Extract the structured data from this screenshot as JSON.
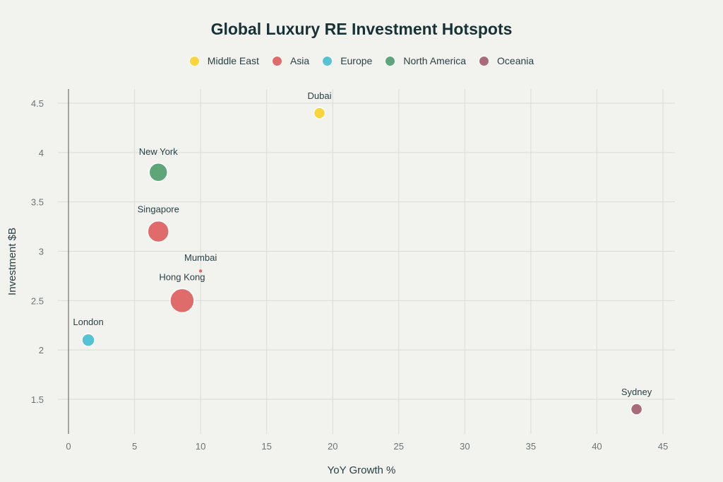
{
  "chart_data": {
    "type": "scatter",
    "subtype": "bubble",
    "title": "Global Luxury RE Investment Hotspots",
    "xlabel": "YoY Growth %",
    "ylabel": "Investment $B",
    "xlim": [
      -0.5,
      46
    ],
    "ylim": [
      1.15,
      4.65
    ],
    "xticks": [
      0,
      5,
      10,
      15,
      20,
      25,
      30,
      35,
      40,
      45
    ],
    "yticks": [
      1.5,
      2,
      2.5,
      3,
      3.5,
      4,
      4.5
    ],
    "grid": true,
    "legend_position": "top",
    "legend": [
      {
        "name": "Middle East",
        "color": "#f9d43a"
      },
      {
        "name": "Asia",
        "color": "#e06b6b"
      },
      {
        "name": "Europe",
        "color": "#55c3d3"
      },
      {
        "name": "North America",
        "color": "#5ea67a"
      },
      {
        "name": "Oceania",
        "color": "#a96a7a"
      }
    ],
    "points": [
      {
        "label": "Dubai",
        "region": "Middle East",
        "x": 19,
        "y": 4.4,
        "r": 8
      },
      {
        "label": "New York",
        "region": "North America",
        "x": 6.8,
        "y": 3.8,
        "r": 13
      },
      {
        "label": "Singapore",
        "region": "Asia",
        "x": 6.8,
        "y": 3.2,
        "r": 15
      },
      {
        "label": "Mumbai",
        "region": "Asia",
        "x": 10,
        "y": 2.8,
        "r": 2.5
      },
      {
        "label": "Hong Kong",
        "region": "Asia",
        "x": 8.6,
        "y": 2.5,
        "r": 17
      },
      {
        "label": "London",
        "region": "Europe",
        "x": 1.5,
        "y": 2.1,
        "r": 9
      },
      {
        "label": "Sydney",
        "region": "Oceania",
        "x": 43,
        "y": 1.4,
        "r": 8
      }
    ]
  }
}
